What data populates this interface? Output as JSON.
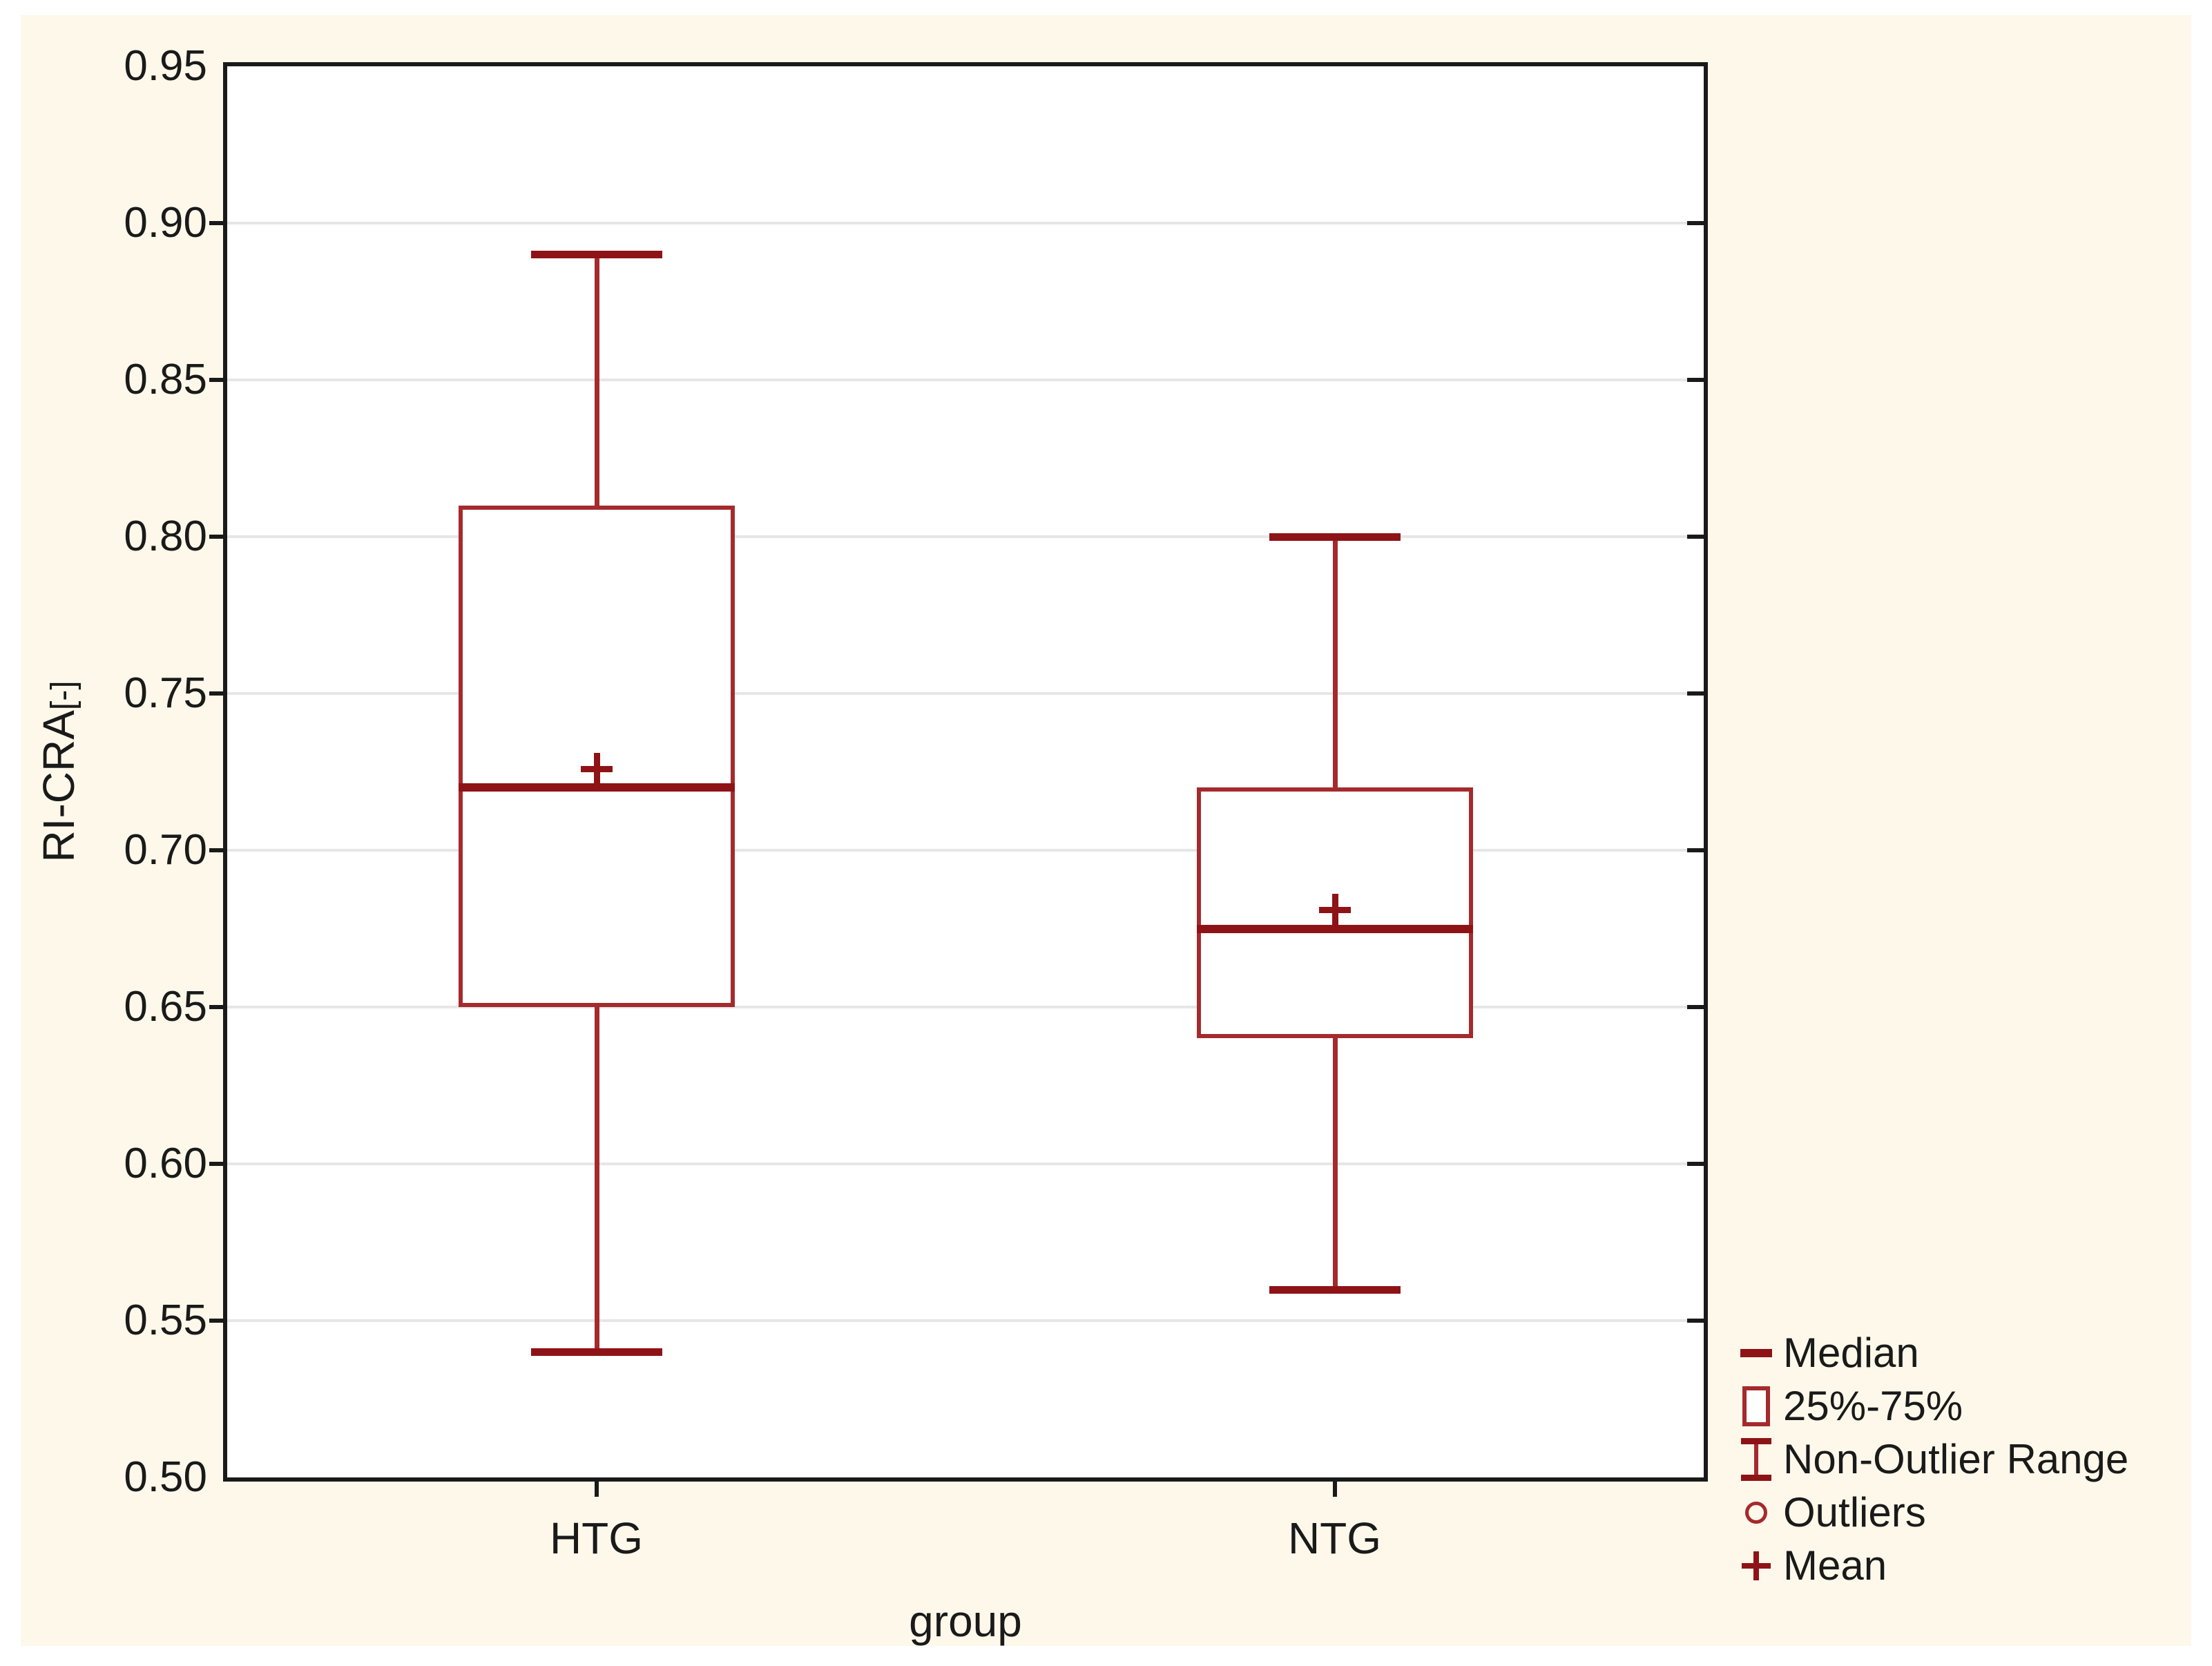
{
  "figure": {
    "xlabel": "group",
    "ylabel": "RI-CRA",
    "ylabel_unit": "[-]"
  },
  "legend": {
    "items": [
      {
        "label": "Median",
        "marker": "median-dash"
      },
      {
        "label": "25%-75%",
        "marker": "box-outline"
      },
      {
        "label": "Non-Outlier Range",
        "marker": "whisker-ibeam"
      },
      {
        "label": "Outliers",
        "marker": "circle-outline"
      },
      {
        "label": "Mean",
        "marker": "plus"
      }
    ]
  },
  "colors": {
    "panel_cream": "#FDF8EA",
    "plot_background": "#FFFFFF",
    "frame_black": "#1A1A1A",
    "grid_gray": "#E6E6E6",
    "box_red": "#A42A2D",
    "dark_red": "#8E1316",
    "text": "#1A1A1A"
  },
  "chart_data": {
    "type": "box",
    "title": "",
    "xlabel": "group",
    "ylabel": "RI-CRA [-]",
    "ylim": [
      0.5,
      0.95
    ],
    "ytick_step": 0.05,
    "ytick_decimals": 2,
    "grid": "horizontal",
    "legend_position": "right-bottom-outside",
    "categories": [
      "HTG",
      "NTG"
    ],
    "series": [
      {
        "name": "HTG",
        "median": 0.72,
        "q1": 0.65,
        "q3": 0.81,
        "whisker_low": 0.54,
        "whisker_high": 0.89,
        "mean": 0.726,
        "outliers": []
      },
      {
        "name": "NTG",
        "median": 0.675,
        "q1": 0.64,
        "q3": 0.72,
        "whisker_low": 0.56,
        "whisker_high": 0.8,
        "mean": 0.681,
        "outliers": []
      }
    ]
  }
}
